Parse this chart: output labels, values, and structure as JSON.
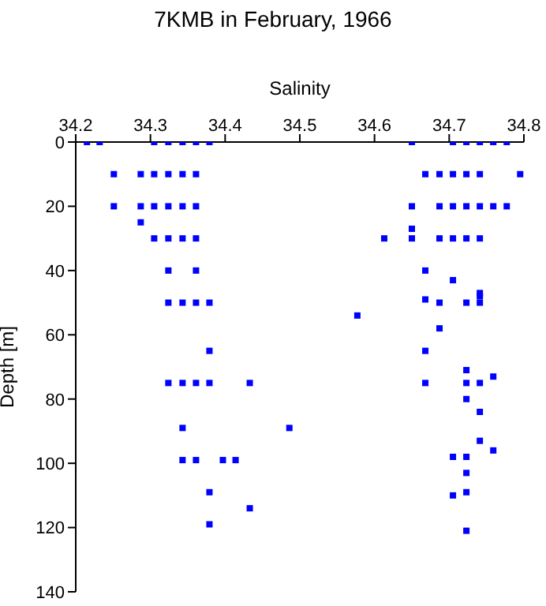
{
  "chart_data": {
    "type": "scatter",
    "title": "7KMB in February, 1966",
    "xlabel": "Salinity",
    "ylabel": "Depth [m]",
    "x": [
      34.215,
      34.232,
      34.305,
      34.324,
      34.343,
      34.361,
      34.379,
      34.251,
      34.287,
      34.305,
      34.324,
      34.343,
      34.361,
      34.251,
      34.287,
      34.305,
      34.324,
      34.343,
      34.361,
      34.287,
      34.305,
      34.324,
      34.343,
      34.361,
      34.324,
      34.361,
      34.324,
      34.343,
      34.361,
      34.379,
      34.379,
      34.324,
      34.343,
      34.361,
      34.379,
      34.433,
      34.343,
      34.486,
      34.343,
      34.361,
      34.397,
      34.414,
      34.379,
      34.433,
      34.379,
      34.65,
      34.705,
      34.723,
      34.741,
      34.759,
      34.777,
      34.668,
      34.687,
      34.705,
      34.723,
      34.741,
      34.795,
      34.65,
      34.687,
      34.705,
      34.723,
      34.741,
      34.759,
      34.777,
      34.65,
      34.613,
      34.65,
      34.687,
      34.705,
      34.723,
      34.741,
      34.668,
      34.705,
      34.741,
      34.668,
      34.687,
      34.723,
      34.741,
      34.741,
      34.577,
      34.687,
      34.668,
      34.723,
      34.759,
      34.668,
      34.723,
      34.741,
      34.723,
      34.741,
      34.741,
      34.759,
      34.705,
      34.723,
      34.723,
      34.705,
      34.723,
      34.723
    ],
    "values": [
      0,
      0,
      0,
      0,
      0,
      0,
      0,
      10,
      10,
      10,
      10,
      10,
      10,
      20,
      20,
      20,
      20,
      20,
      20,
      25,
      30,
      30,
      30,
      30,
      40,
      40,
      50,
      50,
      50,
      50,
      65,
      75,
      75,
      75,
      75,
      75,
      89,
      89,
      99,
      99,
      99,
      99,
      109,
      114,
      119,
      0,
      0,
      0,
      0,
      0,
      0,
      10,
      10,
      10,
      10,
      10,
      10,
      20,
      20,
      20,
      20,
      20,
      20,
      20,
      27,
      30,
      30,
      30,
      30,
      30,
      30,
      40,
      43,
      47,
      49,
      50,
      50,
      48,
      50,
      54,
      58,
      65,
      71,
      73,
      75,
      75,
      75,
      80,
      84,
      93,
      96,
      98,
      98,
      103,
      110,
      109,
      121
    ],
    "color": "#0000ff",
    "marker": "square",
    "xlim": [
      34.2,
      34.8
    ],
    "xticks": [
      34.2,
      34.3,
      34.4,
      34.5,
      34.6,
      34.7,
      34.8
    ],
    "ylim": [
      140,
      0
    ],
    "yticks": [
      0,
      20,
      40,
      60,
      80,
      100,
      120,
      140
    ]
  }
}
